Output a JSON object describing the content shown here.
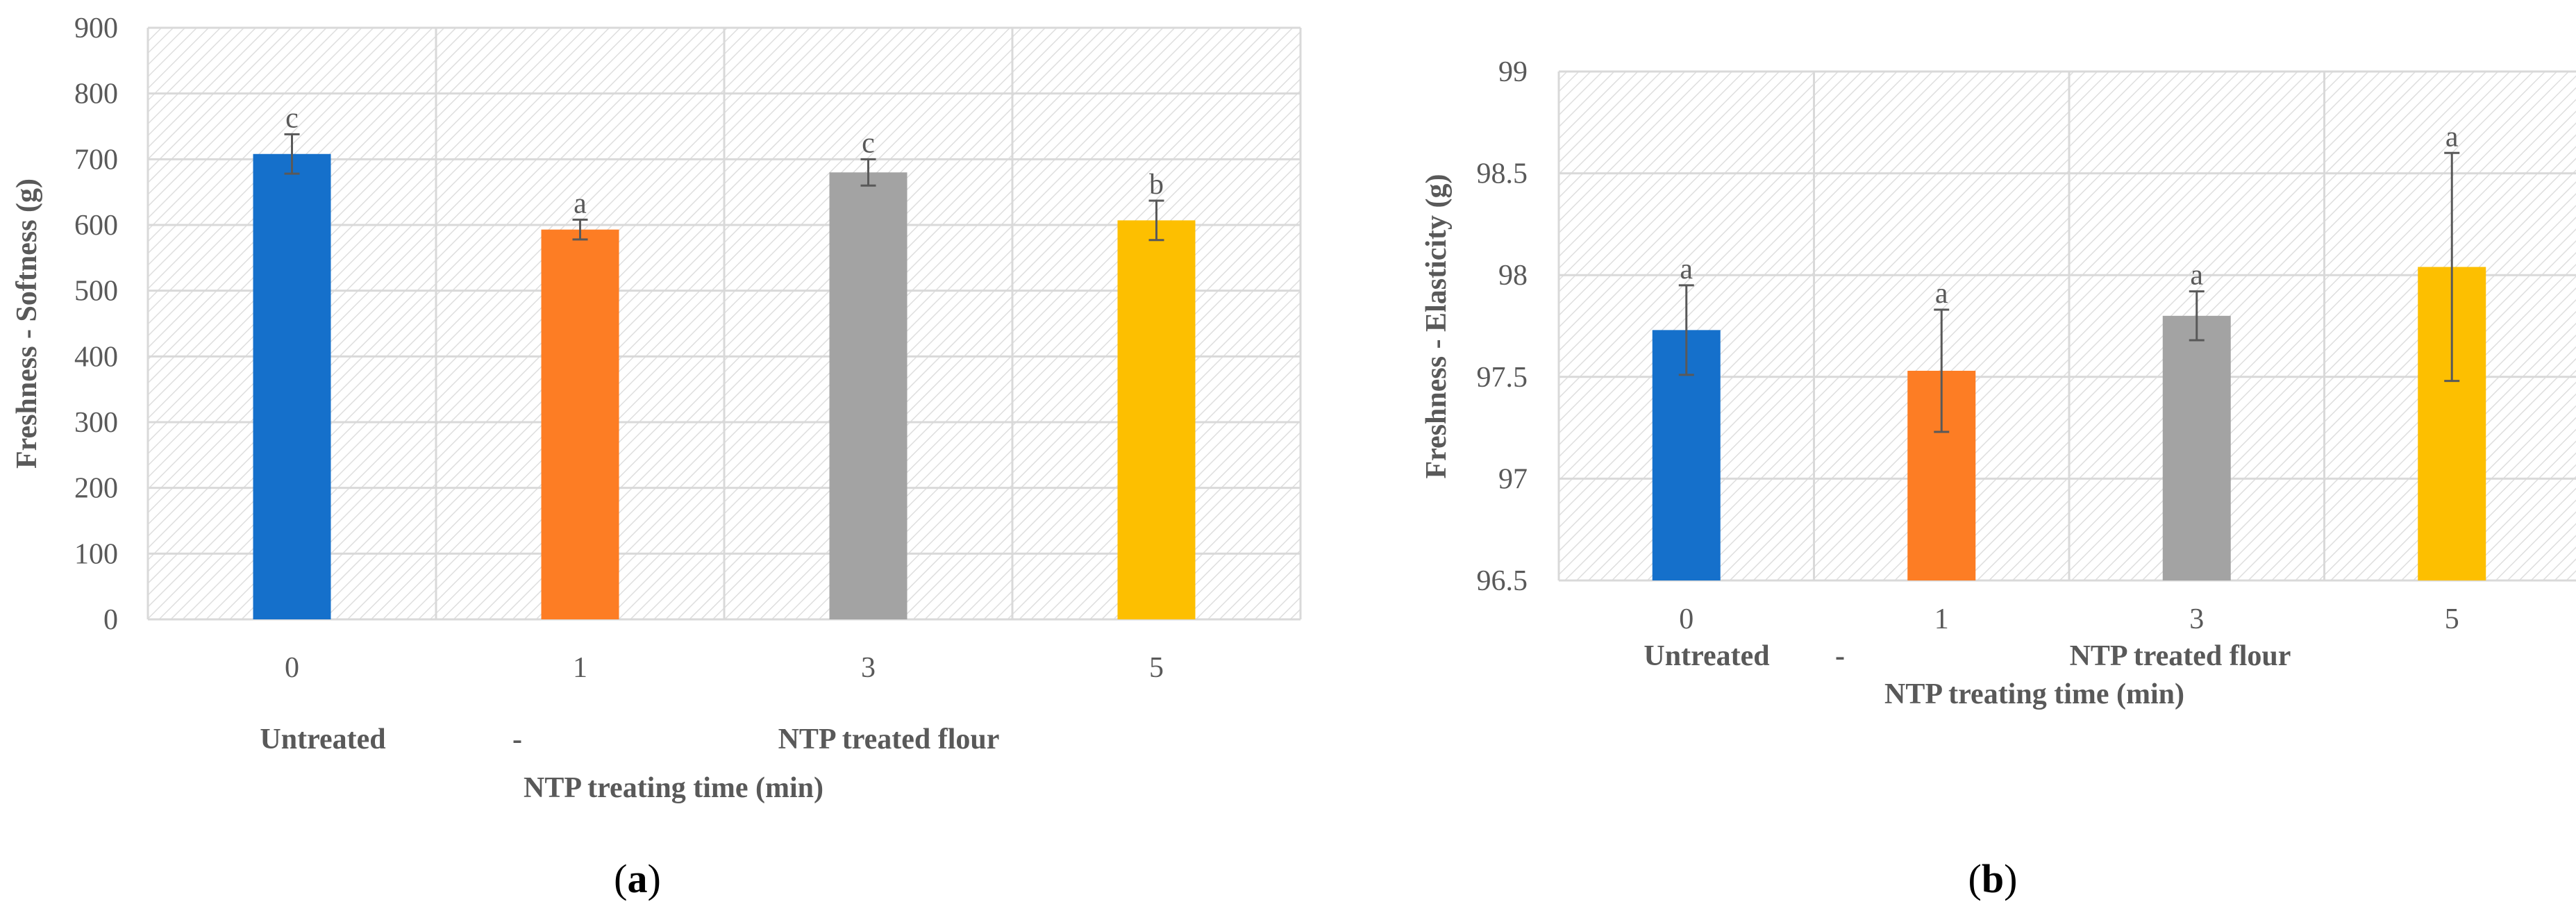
{
  "colors": {
    "blue": "#1570cb",
    "orange": "#fd7d24",
    "gray": "#a3a3a3",
    "yellow": "#fdbf00",
    "grid": "#d9d9d9",
    "hatch": "#dedede",
    "errorbar": "#595959",
    "text": "#595959"
  },
  "chart_data": [
    {
      "type": "bar",
      "panel_label": {
        "open": "(",
        "letter": "a",
        "close": ")"
      },
      "categories": [
        "0",
        "1",
        "3",
        "5"
      ],
      "values": [
        708,
        593,
        680,
        607
      ],
      "errors": [
        30,
        15,
        20,
        30
      ],
      "significance": [
        "c",
        "a",
        "c",
        "b"
      ],
      "bar_colors": [
        "#1570cb",
        "#fd7d24",
        "#a3a3a3",
        "#fdbf00"
      ],
      "ylabel": "Freshness - Softness (g)",
      "ylim": [
        0,
        900
      ],
      "yticks": [
        "0",
        "100",
        "200",
        "300",
        "400",
        "500",
        "600",
        "700",
        "800",
        "900"
      ],
      "xlabel": "NTP treating time (min)",
      "group_labels": [
        "Untreated",
        "-",
        "NTP treated flour"
      ],
      "grid": true
    },
    {
      "type": "bar",
      "panel_label": {
        "open": "(",
        "letter": "b",
        "close": ")"
      },
      "categories": [
        "0",
        "1",
        "3",
        "5"
      ],
      "values": [
        97.73,
        97.53,
        97.8,
        98.04
      ],
      "errors": [
        0.22,
        0.3,
        0.12,
        0.56
      ],
      "significance": [
        "a",
        "a",
        "a",
        "a"
      ],
      "bar_colors": [
        "#1570cb",
        "#fd7d24",
        "#a3a3a3",
        "#fdbf00"
      ],
      "ylabel": "Freshness - Elasticity (g)",
      "ylim": [
        96.5,
        99
      ],
      "yticks": [
        "96.5",
        "97",
        "97.5",
        "98",
        "98.5",
        "99"
      ],
      "xlabel": "NTP treating time (min)",
      "group_labels": [
        "Untreated",
        "-",
        "NTP treated flour"
      ],
      "grid": true
    }
  ]
}
